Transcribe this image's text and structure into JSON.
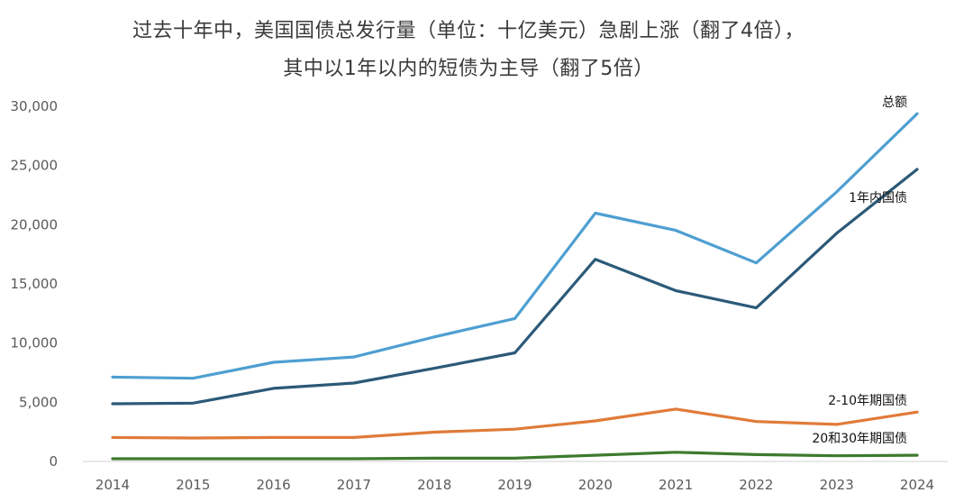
{
  "title_line1": "过去十年中，美国国债总发行量（单位：十亿美元）急剧上涨（翻了4倍），",
  "title_line2": "其中以1年以内的短债为主导（翻了5倍）",
  "chart_data": {
    "type": "line",
    "title": "过去十年中，美国国债总发行量（单位：十亿美元）急剧上涨（翻了4倍），其中以1年以内的短债为主导（翻了5倍）",
    "x": [
      "2014",
      "2015",
      "2016",
      "2017",
      "2018",
      "2019",
      "2020",
      "2021",
      "2022",
      "2023",
      "2024"
    ],
    "ylim": [
      0,
      30000
    ],
    "yticks": [
      0,
      5000,
      10000,
      15000,
      20000,
      25000,
      30000
    ],
    "ytick_labels": [
      "0",
      "5,000",
      "10,000",
      "15,000",
      "20,000",
      "25,000",
      "30,000"
    ],
    "grid": false,
    "legend": "inline labels at line ends",
    "series": [
      {
        "name": "总额",
        "color": "#4e9fd1",
        "values": [
          7050,
          6950,
          8300,
          8750,
          10450,
          12000,
          20900,
          19450,
          16700,
          22700,
          29300
        ]
      },
      {
        "name": "1年内国债",
        "color": "#2c5a78",
        "values": [
          4800,
          4850,
          6100,
          6550,
          7800,
          9100,
          17000,
          14350,
          12900,
          19200,
          24600
        ]
      },
      {
        "name": "2-10年期国债",
        "color": "#e07b39",
        "values": [
          1950,
          1900,
          1950,
          1950,
          2400,
          2650,
          3350,
          4350,
          3300,
          3050,
          4100
        ]
      },
      {
        "name": "20和30年期国债",
        "color": "#3d7a2e",
        "values": [
          150,
          150,
          150,
          150,
          200,
          200,
          450,
          700,
          500,
          400,
          450
        ]
      }
    ]
  }
}
